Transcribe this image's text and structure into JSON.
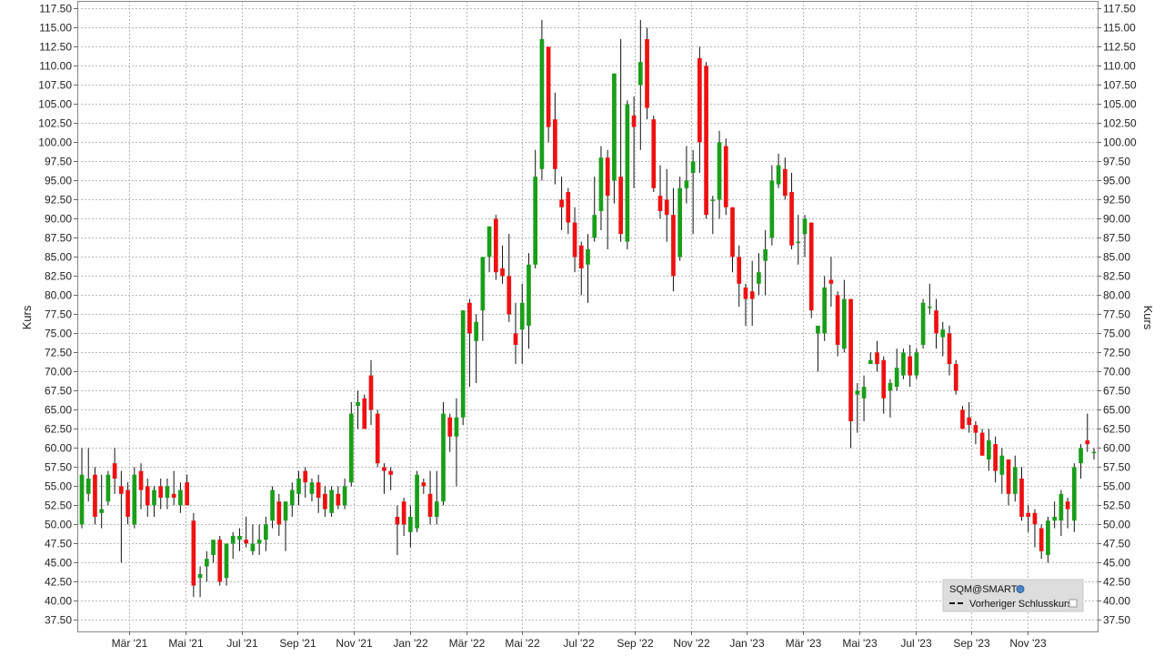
{
  "chart_data": {
    "type": "candlestick",
    "ylabel_left": "Kurs",
    "ylabel_right": "Kurs",
    "ylim": [
      36.0,
      118.5
    ],
    "yticks": [
      "37.50",
      "40.00",
      "42.50",
      "45.00",
      "47.50",
      "50.00",
      "52.50",
      "55.00",
      "57.50",
      "60.00",
      "62.50",
      "65.00",
      "67.50",
      "70.00",
      "72.50",
      "75.00",
      "77.50",
      "80.00",
      "82.50",
      "85.00",
      "87.50",
      "90.00",
      "92.50",
      "95.00",
      "97.50",
      "100.00",
      "102.50",
      "105.00",
      "107.50",
      "110.00",
      "112.50",
      "115.00",
      "117.50"
    ],
    "xticks": [
      "Mär '21",
      "Mai '21",
      "Jul '21",
      "Sep '21",
      "Nov '21",
      "Jan '22",
      "Mär '22",
      "Mai '22",
      "Jul '22",
      "Sep '22",
      "Nov '22",
      "Jan '23",
      "Mär '23",
      "Mai '23",
      "Jul '23",
      "Sep '23",
      "Nov '23"
    ],
    "grid": true,
    "colors": {
      "up": "#1a9e1a",
      "down": "#ee1111",
      "grid": "#b8b8b8",
      "frame": "#888888",
      "legend_bg": "#dddddd"
    },
    "legend": {
      "placement": "bottom-right",
      "entries": [
        "SQM@SMART",
        "Vorheriger Schlusskurs"
      ]
    },
    "candles": [
      {
        "o": 50.0,
        "h": 60.0,
        "l": 49.5,
        "c": 56.5
      },
      {
        "o": 54.0,
        "h": 60.0,
        "l": 53.0,
        "c": 56.0
      },
      {
        "o": 56.5,
        "h": 57.5,
        "l": 50.0,
        "c": 51.0
      },
      {
        "o": 51.5,
        "h": 56.5,
        "l": 49.5,
        "c": 52.0
      },
      {
        "o": 53.0,
        "h": 57.0,
        "l": 52.5,
        "c": 56.5
      },
      {
        "o": 58.0,
        "h": 60.0,
        "l": 54.0,
        "c": 56.0
      },
      {
        "o": 55.0,
        "h": 57.0,
        "l": 45.0,
        "c": 54.0
      },
      {
        "o": 54.5,
        "h": 55.5,
        "l": 50.0,
        "c": 51.0
      },
      {
        "o": 50.0,
        "h": 57.5,
        "l": 49.5,
        "c": 56.5
      },
      {
        "o": 57.0,
        "h": 58.0,
        "l": 52.0,
        "c": 54.5
      },
      {
        "o": 55.0,
        "h": 56.0,
        "l": 51.0,
        "c": 52.5
      },
      {
        "o": 52.5,
        "h": 55.0,
        "l": 51.0,
        "c": 54.5
      },
      {
        "o": 55.0,
        "h": 56.0,
        "l": 52.0,
        "c": 53.5
      },
      {
        "o": 53.5,
        "h": 56.0,
        "l": 52.0,
        "c": 55.0
      },
      {
        "o": 54.0,
        "h": 57.0,
        "l": 52.5,
        "c": 53.5
      },
      {
        "o": 52.5,
        "h": 55.5,
        "l": 51.5,
        "c": 54.5
      },
      {
        "o": 55.5,
        "h": 56.5,
        "l": 53.0,
        "c": 52.5
      },
      {
        "o": 50.5,
        "h": 51.5,
        "l": 40.5,
        "c": 42.0
      },
      {
        "o": 43.0,
        "h": 44.5,
        "l": 40.5,
        "c": 43.5
      },
      {
        "o": 44.5,
        "h": 46.5,
        "l": 42.5,
        "c": 45.5
      },
      {
        "o": 46.0,
        "h": 48.0,
        "l": 45.0,
        "c": 48.0
      },
      {
        "o": 48.0,
        "h": 48.5,
        "l": 42.0,
        "c": 42.5
      },
      {
        "o": 43.0,
        "h": 47.5,
        "l": 42.0,
        "c": 47.5
      },
      {
        "o": 47.5,
        "h": 49.0,
        "l": 45.5,
        "c": 48.5
      },
      {
        "o": 48.0,
        "h": 49.5,
        "l": 46.5,
        "c": 48.5
      },
      {
        "o": 48.0,
        "h": 51.0,
        "l": 47.0,
        "c": 47.5
      },
      {
        "o": 46.5,
        "h": 50.0,
        "l": 46.0,
        "c": 47.5
      },
      {
        "o": 47.5,
        "h": 50.0,
        "l": 46.0,
        "c": 48.0
      },
      {
        "o": 48.0,
        "h": 51.0,
        "l": 46.5,
        "c": 50.0
      },
      {
        "o": 50.5,
        "h": 55.0,
        "l": 49.5,
        "c": 54.5
      },
      {
        "o": 53.0,
        "h": 54.0,
        "l": 48.5,
        "c": 50.0
      },
      {
        "o": 50.5,
        "h": 53.0,
        "l": 46.5,
        "c": 53.0
      },
      {
        "o": 52.5,
        "h": 55.5,
        "l": 51.0,
        "c": 54.5
      },
      {
        "o": 54.0,
        "h": 57.0,
        "l": 52.5,
        "c": 56.0
      },
      {
        "o": 57.0,
        "h": 57.5,
        "l": 53.5,
        "c": 55.5
      },
      {
        "o": 54.0,
        "h": 56.0,
        "l": 53.0,
        "c": 55.5
      },
      {
        "o": 55.5,
        "h": 56.5,
        "l": 51.5,
        "c": 53.5
      },
      {
        "o": 54.0,
        "h": 55.0,
        "l": 51.0,
        "c": 52.0
      },
      {
        "o": 51.5,
        "h": 55.0,
        "l": 51.0,
        "c": 54.5
      },
      {
        "o": 54.0,
        "h": 55.0,
        "l": 52.0,
        "c": 52.5
      },
      {
        "o": 52.5,
        "h": 56.0,
        "l": 52.0,
        "c": 55.0
      },
      {
        "o": 55.5,
        "h": 66.0,
        "l": 55.0,
        "c": 64.5
      },
      {
        "o": 65.5,
        "h": 67.5,
        "l": 62.5,
        "c": 66.0
      },
      {
        "o": 66.5,
        "h": 67.0,
        "l": 63.0,
        "c": 62.5
      },
      {
        "o": 69.5,
        "h": 71.5,
        "l": 63.0,
        "c": 65.0
      },
      {
        "o": 64.5,
        "h": 65.0,
        "l": 57.5,
        "c": 58.0
      },
      {
        "o": 57.5,
        "h": 58.0,
        "l": 54.0,
        "c": 57.0
      },
      {
        "o": 57.0,
        "h": 57.5,
        "l": 54.5,
        "c": 56.5
      },
      {
        "o": 51.0,
        "h": 52.5,
        "l": 46.0,
        "c": 50.0
      },
      {
        "o": 53.0,
        "h": 53.5,
        "l": 48.5,
        "c": 50.0
      },
      {
        "o": 49.0,
        "h": 52.5,
        "l": 47.0,
        "c": 51.0
      },
      {
        "o": 49.5,
        "h": 57.0,
        "l": 49.0,
        "c": 56.5
      },
      {
        "o": 55.5,
        "h": 56.0,
        "l": 54.0,
        "c": 55.0
      },
      {
        "o": 54.0,
        "h": 57.0,
        "l": 50.0,
        "c": 51.0
      },
      {
        "o": 51.0,
        "h": 57.0,
        "l": 50.0,
        "c": 53.0
      },
      {
        "o": 53.0,
        "h": 66.0,
        "l": 52.5,
        "c": 64.5
      },
      {
        "o": 64.0,
        "h": 64.5,
        "l": 59.5,
        "c": 61.5
      },
      {
        "o": 61.5,
        "h": 66.5,
        "l": 55.0,
        "c": 64.0
      },
      {
        "o": 64.0,
        "h": 78.0,
        "l": 63.0,
        "c": 78.0
      },
      {
        "o": 79.0,
        "h": 79.5,
        "l": 68.0,
        "c": 75.0
      },
      {
        "o": 74.0,
        "h": 77.5,
        "l": 68.5,
        "c": 76.5
      },
      {
        "o": 78.0,
        "h": 85.0,
        "l": 74.0,
        "c": 85.0
      },
      {
        "o": 85.0,
        "h": 89.0,
        "l": 83.0,
        "c": 89.0
      },
      {
        "o": 90.0,
        "h": 90.5,
        "l": 82.0,
        "c": 83.0
      },
      {
        "o": 83.5,
        "h": 86.5,
        "l": 81.5,
        "c": 82.5
      },
      {
        "o": 82.5,
        "h": 88.0,
        "l": 76.5,
        "c": 77.5
      },
      {
        "o": 75.0,
        "h": 79.0,
        "l": 71.0,
        "c": 73.5
      },
      {
        "o": 75.5,
        "h": 81.5,
        "l": 71.0,
        "c": 79.0
      },
      {
        "o": 76.0,
        "h": 85.5,
        "l": 73.0,
        "c": 84.0
      },
      {
        "o": 84.0,
        "h": 99.0,
        "l": 83.5,
        "c": 95.5
      },
      {
        "o": 96.5,
        "h": 116.0,
        "l": 95.0,
        "c": 113.5
      },
      {
        "o": 112.5,
        "h": 112.5,
        "l": 100.0,
        "c": 102.0
      },
      {
        "o": 103.0,
        "h": 106.5,
        "l": 94.5,
        "c": 96.5
      },
      {
        "o": 92.5,
        "h": 95.5,
        "l": 88.5,
        "c": 91.5
      },
      {
        "o": 93.5,
        "h": 94.0,
        "l": 88.0,
        "c": 89.5
      },
      {
        "o": 89.5,
        "h": 91.5,
        "l": 83.0,
        "c": 85.0
      },
      {
        "o": 86.5,
        "h": 87.0,
        "l": 80.0,
        "c": 83.5
      },
      {
        "o": 84.0,
        "h": 88.0,
        "l": 79.0,
        "c": 86.0
      },
      {
        "o": 87.5,
        "h": 95.5,
        "l": 87.0,
        "c": 90.5
      },
      {
        "o": 91.0,
        "h": 99.5,
        "l": 88.5,
        "c": 98.0
      },
      {
        "o": 98.0,
        "h": 99.0,
        "l": 86.0,
        "c": 93.0
      },
      {
        "o": 95.0,
        "h": 109.0,
        "l": 92.0,
        "c": 109.0
      },
      {
        "o": 95.5,
        "h": 113.5,
        "l": 87.0,
        "c": 88.0
      },
      {
        "o": 87.0,
        "h": 105.5,
        "l": 86.0,
        "c": 105.0
      },
      {
        "o": 103.5,
        "h": 106.0,
        "l": 94.0,
        "c": 102.0
      },
      {
        "o": 107.5,
        "h": 116.0,
        "l": 99.0,
        "c": 110.5
      },
      {
        "o": 113.5,
        "h": 115.0,
        "l": 103.0,
        "c": 104.5
      },
      {
        "o": 103.0,
        "h": 103.5,
        "l": 93.5,
        "c": 94.0
      },
      {
        "o": 93.0,
        "h": 97.0,
        "l": 90.0,
        "c": 91.0
      },
      {
        "o": 92.5,
        "h": 96.5,
        "l": 87.0,
        "c": 90.5
      },
      {
        "o": 90.5,
        "h": 94.0,
        "l": 80.5,
        "c": 82.5
      },
      {
        "o": 85.0,
        "h": 95.5,
        "l": 84.5,
        "c": 94.0
      },
      {
        "o": 94.0,
        "h": 99.5,
        "l": 92.0,
        "c": 95.0
      },
      {
        "o": 96.0,
        "h": 99.0,
        "l": 88.0,
        "c": 97.5
      },
      {
        "o": 111.0,
        "h": 112.5,
        "l": 96.0,
        "c": 100.0
      },
      {
        "o": 110.0,
        "h": 110.5,
        "l": 90.0,
        "c": 90.5
      },
      {
        "o": 92.5,
        "h": 93.0,
        "l": 88.0,
        "c": 92.5
      },
      {
        "o": 92.5,
        "h": 101.5,
        "l": 90.0,
        "c": 100.0
      },
      {
        "o": 99.5,
        "h": 100.5,
        "l": 90.5,
        "c": 91.5
      },
      {
        "o": 91.5,
        "h": 91.5,
        "l": 83.0,
        "c": 85.0
      },
      {
        "o": 85.0,
        "h": 86.5,
        "l": 78.5,
        "c": 81.5
      },
      {
        "o": 81.0,
        "h": 81.5,
        "l": 76.0,
        "c": 79.5
      },
      {
        "o": 80.5,
        "h": 84.5,
        "l": 76.0,
        "c": 79.5
      },
      {
        "o": 81.5,
        "h": 85.5,
        "l": 80.0,
        "c": 83.0
      },
      {
        "o": 84.5,
        "h": 88.5,
        "l": 80.0,
        "c": 86.0
      },
      {
        "o": 87.5,
        "h": 97.0,
        "l": 86.5,
        "c": 95.0
      },
      {
        "o": 94.5,
        "h": 98.5,
        "l": 94.0,
        "c": 97.0
      },
      {
        "o": 96.5,
        "h": 98.0,
        "l": 92.5,
        "c": 93.0
      },
      {
        "o": 93.5,
        "h": 96.0,
        "l": 86.0,
        "c": 86.5
      },
      {
        "o": 87.0,
        "h": 90.5,
        "l": 84.0,
        "c": 87.0
      },
      {
        "o": 88.0,
        "h": 90.5,
        "l": 85.0,
        "c": 90.0
      },
      {
        "o": 89.5,
        "h": 89.5,
        "l": 77.0,
        "c": 78.0
      },
      {
        "o": 75.0,
        "h": 76.0,
        "l": 70.0,
        "c": 76.0
      },
      {
        "o": 75.0,
        "h": 82.5,
        "l": 74.0,
        "c": 81.0
      },
      {
        "o": 82.0,
        "h": 85.0,
        "l": 78.5,
        "c": 81.5
      },
      {
        "o": 80.0,
        "h": 80.5,
        "l": 72.0,
        "c": 73.5
      },
      {
        "o": 73.0,
        "h": 82.0,
        "l": 72.5,
        "c": 79.5
      },
      {
        "o": 79.5,
        "h": 79.5,
        "l": 60.0,
        "c": 63.5
      },
      {
        "o": 67.0,
        "h": 68.5,
        "l": 62.0,
        "c": 67.5
      },
      {
        "o": 66.5,
        "h": 69.5,
        "l": 63.5,
        "c": 68.0
      },
      {
        "o": 71.0,
        "h": 72.5,
        "l": 71.0,
        "c": 71.5
      },
      {
        "o": 72.5,
        "h": 74.0,
        "l": 70.0,
        "c": 71.0
      },
      {
        "o": 71.5,
        "h": 72.0,
        "l": 64.5,
        "c": 66.5
      },
      {
        "o": 67.5,
        "h": 69.0,
        "l": 64.0,
        "c": 68.5
      },
      {
        "o": 68.0,
        "h": 73.0,
        "l": 67.5,
        "c": 70.5
      },
      {
        "o": 69.5,
        "h": 73.0,
        "l": 69.0,
        "c": 72.5
      },
      {
        "o": 72.0,
        "h": 73.5,
        "l": 68.0,
        "c": 69.5
      },
      {
        "o": 69.5,
        "h": 73.0,
        "l": 69.0,
        "c": 72.5
      },
      {
        "o": 73.5,
        "h": 79.5,
        "l": 73.0,
        "c": 79.0
      },
      {
        "o": 78.5,
        "h": 81.5,
        "l": 77.5,
        "c": 78.5
      },
      {
        "o": 78.0,
        "h": 79.5,
        "l": 73.0,
        "c": 75.0
      },
      {
        "o": 74.5,
        "h": 76.5,
        "l": 72.0,
        "c": 75.5
      },
      {
        "o": 75.0,
        "h": 76.0,
        "l": 69.5,
        "c": 71.0
      },
      {
        "o": 71.0,
        "h": 71.5,
        "l": 67.0,
        "c": 67.5
      },
      {
        "o": 65.0,
        "h": 65.5,
        "l": 62.5,
        "c": 62.5
      },
      {
        "o": 64.0,
        "h": 66.0,
        "l": 62.0,
        "c": 63.0
      },
      {
        "o": 63.0,
        "h": 63.5,
        "l": 60.5,
        "c": 62.0
      },
      {
        "o": 62.0,
        "h": 62.5,
        "l": 59.0,
        "c": 59.0
      },
      {
        "o": 58.5,
        "h": 62.5,
        "l": 57.0,
        "c": 61.0
      },
      {
        "o": 60.5,
        "h": 61.5,
        "l": 55.5,
        "c": 57.0
      },
      {
        "o": 56.5,
        "h": 60.0,
        "l": 54.0,
        "c": 59.0
      },
      {
        "o": 58.5,
        "h": 58.5,
        "l": 52.5,
        "c": 54.0
      },
      {
        "o": 54.0,
        "h": 59.0,
        "l": 53.0,
        "c": 57.5
      },
      {
        "o": 56.0,
        "h": 57.5,
        "l": 50.5,
        "c": 51.0
      },
      {
        "o": 51.5,
        "h": 52.5,
        "l": 49.0,
        "c": 51.0
      },
      {
        "o": 51.5,
        "h": 52.0,
        "l": 47.0,
        "c": 50.0
      },
      {
        "o": 49.5,
        "h": 50.0,
        "l": 45.5,
        "c": 46.5
      },
      {
        "o": 46.0,
        "h": 51.0,
        "l": 45.0,
        "c": 50.5
      },
      {
        "o": 50.5,
        "h": 53.0,
        "l": 49.5,
        "c": 51.0
      },
      {
        "o": 50.5,
        "h": 54.5,
        "l": 48.5,
        "c": 54.0
      },
      {
        "o": 53.0,
        "h": 53.5,
        "l": 49.5,
        "c": 52.0
      },
      {
        "o": 50.5,
        "h": 58.0,
        "l": 49.0,
        "c": 57.5
      },
      {
        "o": 58.0,
        "h": 60.5,
        "l": 56.0,
        "c": 60.0
      },
      {
        "o": 61.0,
        "h": 64.5,
        "l": 59.5,
        "c": 60.5
      },
      {
        "o": 59.5,
        "h": 60.0,
        "l": 58.5,
        "c": 59.5
      }
    ]
  }
}
